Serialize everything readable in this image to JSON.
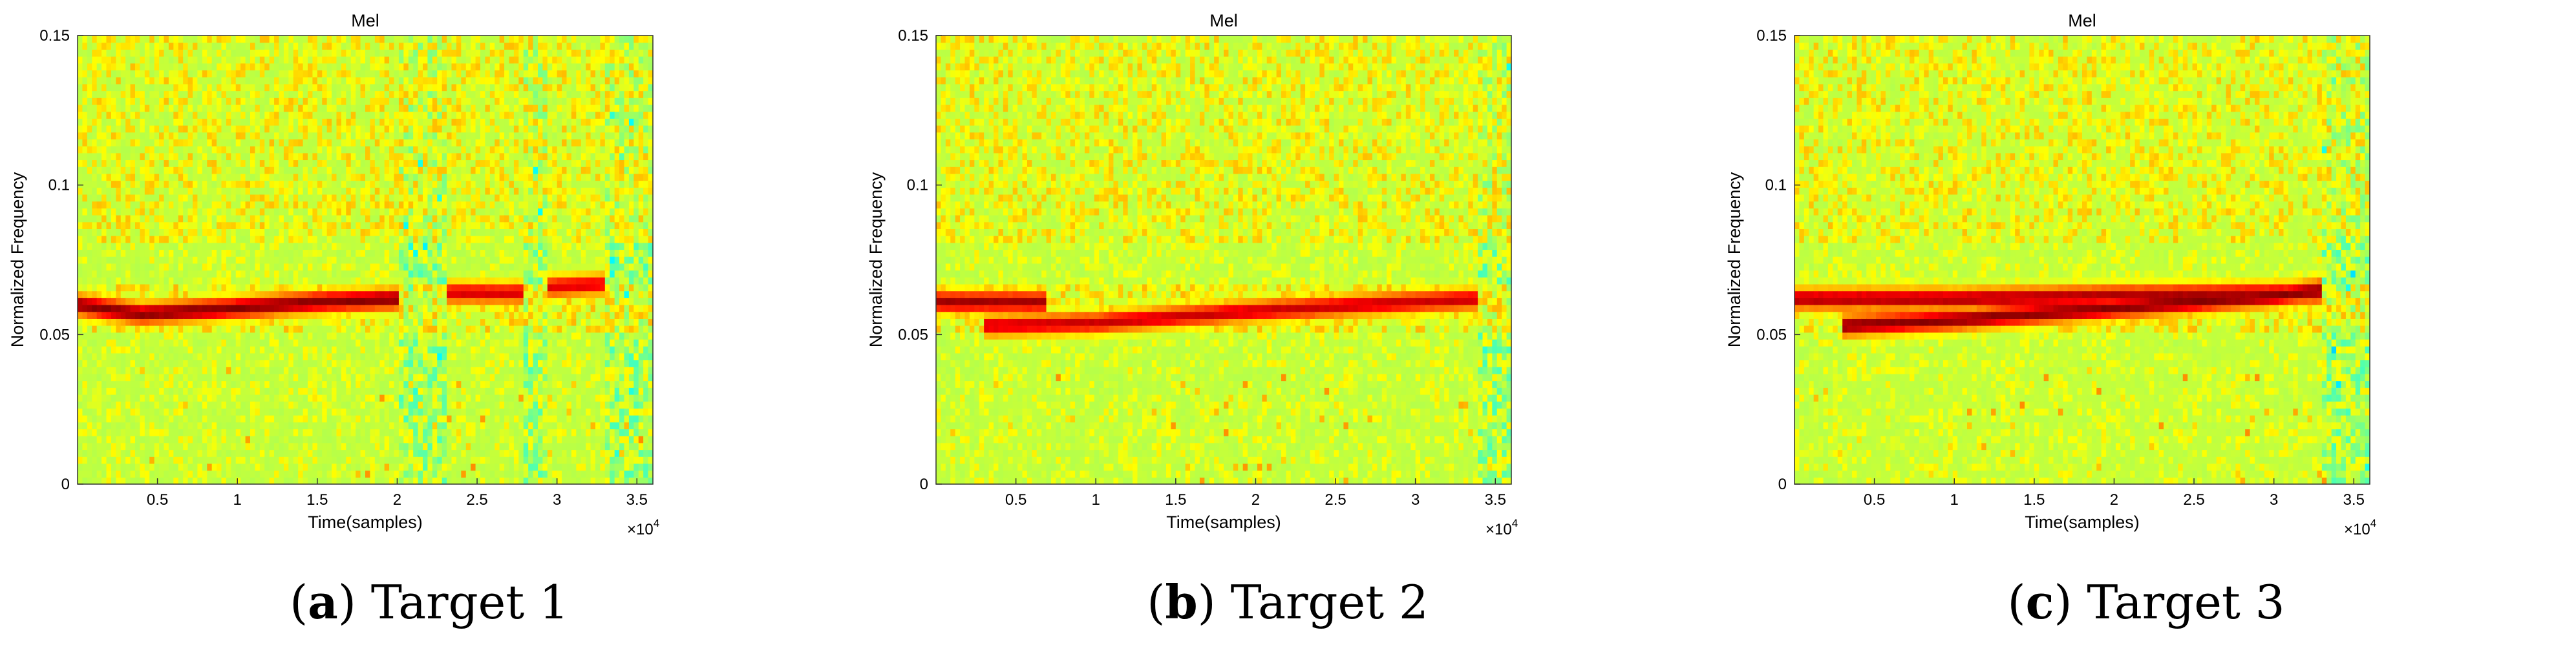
{
  "chart_data": [
    {
      "type": "heatmap",
      "title": "Mel",
      "xlabel": "Time(samples)",
      "ylabel": "Normalized Frequency",
      "x_multiplier": "×10",
      "x_multiplier_exp": "4",
      "xlim": [
        0,
        3.6
      ],
      "ylim": [
        0,
        0.15
      ],
      "xticks": [
        0.5,
        1,
        1.5,
        2,
        2.5,
        3,
        3.5
      ],
      "xtick_labels": [
        "0.5",
        "1",
        "1.5",
        "2",
        "2.5",
        "3",
        "3.5"
      ],
      "yticks": [
        0,
        0.05,
        0.1,
        0.15
      ],
      "ytick_labels": [
        "0",
        "0.05",
        "0.1",
        "0.15"
      ],
      "colormap": "jet",
      "tracks": [
        {
          "points": [
            [
              0,
              0.06
            ],
            [
              0.4,
              0.057
            ],
            [
              1.0,
              0.059
            ],
            [
              1.5,
              0.061
            ],
            [
              2.0,
              0.062
            ]
          ],
          "intensity": 1.0
        },
        {
          "points": [
            [
              2.3,
              0.064
            ],
            [
              2.8,
              0.064
            ]
          ],
          "intensity": 0.82
        },
        {
          "points": [
            [
              2.95,
              0.066
            ],
            [
              3.3,
              0.067
            ]
          ],
          "intensity": 0.8
        }
      ],
      "caption_letter": "a",
      "caption_text": "Target 1"
    },
    {
      "type": "heatmap",
      "title": "Mel",
      "xlabel": "Time(samples)",
      "ylabel": "Normalized Frequency",
      "x_multiplier": "×10",
      "x_multiplier_exp": "4",
      "xlim": [
        0,
        3.6
      ],
      "ylim": [
        0,
        0.15
      ],
      "xticks": [
        0.5,
        1,
        1.5,
        2,
        2.5,
        3,
        3.5
      ],
      "xtick_labels": [
        "0.5",
        "1",
        "1.5",
        "2",
        "2.5",
        "3",
        "3.5"
      ],
      "yticks": [
        0,
        0.05,
        0.1,
        0.15
      ],
      "ytick_labels": [
        "0",
        "0.05",
        "0.1",
        "0.15"
      ],
      "colormap": "jet",
      "tracks": [
        {
          "points": [
            [
              0,
              0.061
            ],
            [
              0.7,
              0.061
            ]
          ],
          "intensity": 0.95
        },
        {
          "points": [
            [
              0.3,
              0.053
            ],
            [
              1.0,
              0.054
            ],
            [
              2.0,
              0.058
            ],
            [
              3.0,
              0.061
            ],
            [
              3.4,
              0.062
            ]
          ],
          "intensity": 0.85
        }
      ],
      "caption_letter": "b",
      "caption_text": "Target 2"
    },
    {
      "type": "heatmap",
      "title": "Mel",
      "xlabel": "Time(samples)",
      "ylabel": "Normalized Frequency",
      "x_multiplier": "×10",
      "x_multiplier_exp": "4",
      "xlim": [
        0,
        3.6
      ],
      "ylim": [
        0,
        0.15
      ],
      "xticks": [
        0.5,
        1,
        1.5,
        2,
        2.5,
        3,
        3.5
      ],
      "xtick_labels": [
        "0.5",
        "1",
        "1.5",
        "2",
        "2.5",
        "3",
        "3.5"
      ],
      "yticks": [
        0,
        0.05,
        0.1,
        0.15
      ],
      "ytick_labels": [
        "0",
        "0.05",
        "0.1",
        "0.15"
      ],
      "colormap": "jet",
      "tracks": [
        {
          "points": [
            [
              0,
              0.062
            ],
            [
              1.0,
              0.062
            ],
            [
              2.0,
              0.063
            ],
            [
              3.3,
              0.064
            ]
          ],
          "intensity": 0.92
        },
        {
          "points": [
            [
              0.3,
              0.053
            ],
            [
              1.0,
              0.055
            ],
            [
              2.0,
              0.059
            ],
            [
              3.0,
              0.063
            ],
            [
              3.3,
              0.065
            ]
          ],
          "intensity": 1.0
        }
      ],
      "caption_letter": "c",
      "caption_text": "Target 3"
    }
  ]
}
